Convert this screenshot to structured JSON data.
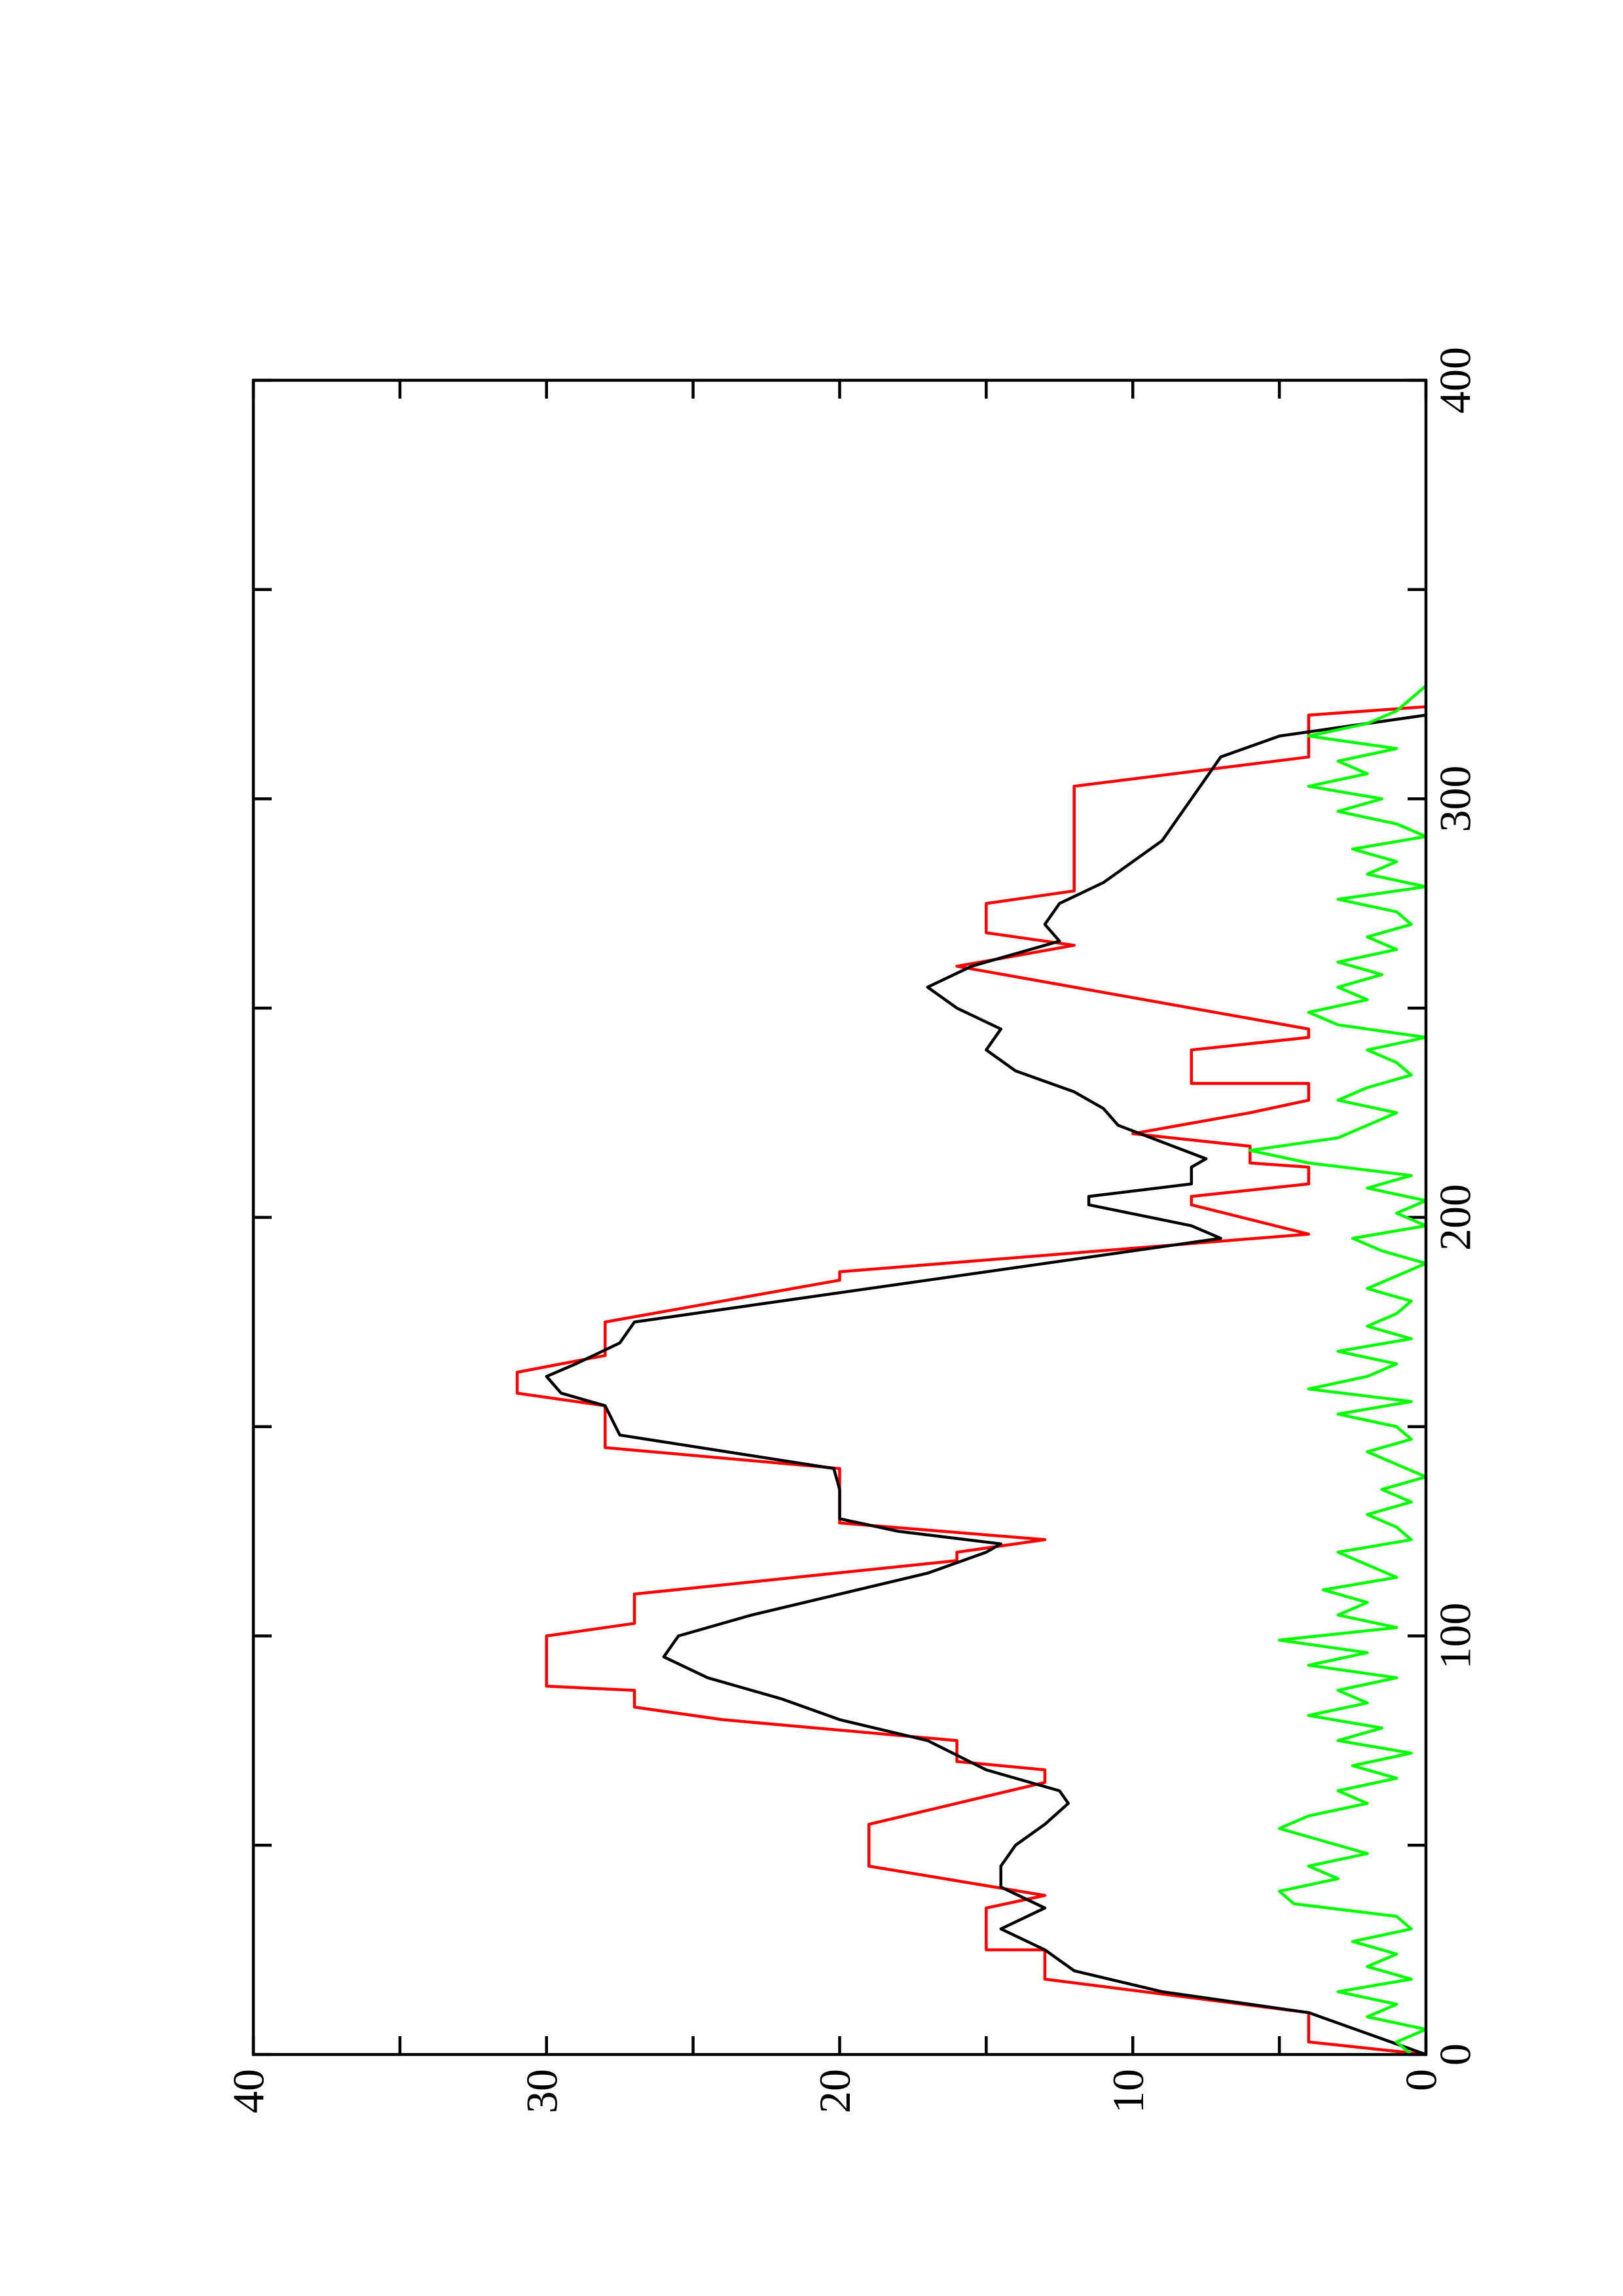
{
  "chart_data": {
    "type": "line",
    "xlim": [
      0,
      400
    ],
    "xticks": [
      0,
      100,
      200,
      300,
      400
    ],
    "xticks_minor": [
      50,
      150,
      250,
      350
    ],
    "ylim": [
      0,
      40
    ],
    "yticks": [
      0,
      10,
      20,
      30,
      40
    ],
    "yticks_minor": [
      5,
      15,
      25,
      35
    ],
    "rotated": true,
    "series": [
      {
        "color": "#ff0000",
        "x": [
          0,
          3,
          10,
          18,
          25,
          25,
          35,
          38,
          45,
          55,
          65,
          68,
          70,
          75,
          80,
          83,
          87,
          88,
          100,
          103,
          110,
          118,
          120,
          123,
          127,
          140,
          145,
          155,
          158,
          163,
          167,
          175,
          185,
          187,
          196,
          203,
          205,
          208,
          212,
          213,
          217,
          220,
          225,
          228,
          232,
          232,
          240,
          243,
          245,
          255,
          260,
          265,
          268,
          275,
          278,
          303,
          310,
          320,
          322
        ],
        "values": [
          0,
          4,
          4,
          13,
          13,
          15,
          15,
          13,
          19,
          19,
          13,
          13,
          16,
          16,
          24,
          27,
          27,
          30,
          30,
          27,
          27,
          16,
          16,
          13,
          20,
          20,
          28,
          28,
          31,
          31,
          28,
          28,
          20,
          20,
          4,
          8,
          8,
          4,
          4,
          6,
          6,
          10,
          6,
          4,
          4,
          8,
          8,
          4,
          4,
          12,
          16,
          12,
          15,
          15,
          12,
          12,
          4,
          4,
          0
        ]
      },
      {
        "color": "#000000",
        "x": [
          0,
          5,
          10,
          15,
          20,
          25,
          30,
          35,
          40,
          45,
          50,
          55,
          60,
          63,
          68,
          75,
          80,
          85,
          90,
          95,
          100,
          105,
          110,
          115,
          120,
          122,
          125,
          128,
          135,
          140,
          148,
          155,
          158,
          162,
          165,
          170,
          175,
          180,
          185,
          190,
          195,
          198,
          203,
          205,
          208,
          212,
          214,
          218,
          222,
          226,
          230,
          235,
          240,
          245,
          250,
          255,
          260,
          263,
          266,
          270,
          275,
          280,
          285,
          290,
          295,
          300,
          305,
          310,
          315,
          320
        ],
        "values": [
          0,
          2,
          4,
          9,
          12,
          13,
          14.5,
          13,
          14.5,
          14.5,
          14,
          13,
          12.2,
          12.5,
          15,
          17,
          20,
          22,
          24.5,
          26,
          25.5,
          23,
          20,
          17,
          15,
          14.5,
          18,
          20,
          20,
          20.2,
          27.5,
          28,
          29.5,
          30,
          29,
          27.5,
          27,
          22,
          17,
          12,
          7,
          8,
          11.5,
          11.5,
          8,
          8,
          7.5,
          9,
          10.5,
          11,
          12,
          14,
          15,
          14.5,
          16,
          17,
          15.5,
          14,
          12.5,
          13,
          12.5,
          11,
          10,
          9,
          8.5,
          8,
          7.5,
          7,
          5,
          0
        ]
      },
      {
        "color": "#00ff00",
        "x": [
          0,
          3,
          6,
          9,
          12,
          15,
          18,
          21,
          24,
          27,
          30,
          33,
          36,
          39,
          42,
          45,
          48,
          51,
          54,
          57,
          60,
          63,
          66,
          69,
          72,
          75,
          78,
          81,
          84,
          87,
          90,
          93,
          96,
          99,
          102,
          105,
          108,
          111,
          114,
          117,
          120,
          123,
          126,
          129,
          132,
          135,
          138,
          141,
          144,
          147,
          150,
          153,
          156,
          159,
          162,
          165,
          168,
          171,
          174,
          177,
          180,
          183,
          186,
          189,
          192,
          195,
          198,
          201,
          204,
          207,
          210,
          213,
          216,
          219,
          222,
          225,
          228,
          231,
          234,
          237,
          240,
          243,
          246,
          249,
          252,
          255,
          258,
          261,
          264,
          267,
          270,
          273,
          276,
          279,
          282,
          285,
          288,
          291,
          294,
          297,
          300,
          303,
          306,
          309,
          312,
          315,
          318,
          321,
          324,
          327
        ],
        "values": [
          0.5,
          1,
          0,
          2,
          1,
          3,
          0.5,
          2,
          1,
          2.5,
          0.5,
          1,
          4.5,
          5,
          3,
          4,
          2,
          3.5,
          5,
          4,
          2,
          3,
          1,
          2.5,
          0.5,
          3,
          1.5,
          4,
          2,
          3,
          1,
          4,
          2,
          5,
          1,
          3,
          2,
          3.5,
          1,
          2,
          3,
          0.5,
          1,
          2,
          0.5,
          1.5,
          0,
          1,
          2,
          0.5,
          1,
          3,
          0.5,
          4,
          2,
          1,
          3,
          0.5,
          2,
          1,
          0.5,
          2,
          1,
          0,
          1.5,
          2.5,
          0,
          1,
          0,
          2,
          0.5,
          4,
          6,
          3,
          2,
          1,
          3,
          2,
          0.5,
          1,
          2,
          0,
          3,
          4,
          2,
          3,
          1.5,
          3,
          1,
          2,
          0.5,
          1,
          3,
          0,
          2,
          1,
          2.5,
          0,
          1,
          3,
          1.5,
          4,
          2,
          3,
          1,
          4,
          2,
          1,
          0.5,
          0
        ]
      }
    ]
  }
}
